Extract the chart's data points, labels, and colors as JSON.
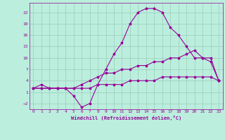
{
  "xlabel": "Windchill (Refroidissement éolien,°C)",
  "bg_color": "#bbeedd",
  "grid_color": "#99ccbb",
  "line_color": "#990099",
  "xlim": [
    -0.5,
    23.5
  ],
  "ylim": [
    -3.5,
    24.5
  ],
  "xticks": [
    0,
    1,
    2,
    3,
    4,
    5,
    6,
    7,
    8,
    9,
    10,
    11,
    12,
    13,
    14,
    15,
    16,
    17,
    18,
    19,
    20,
    21,
    22,
    23
  ],
  "yticks": [
    -2,
    1,
    4,
    7,
    10,
    13,
    16,
    19,
    22
  ],
  "curve1_x": [
    0,
    1,
    2,
    3,
    4,
    5,
    6,
    7,
    8,
    9,
    10,
    11,
    12,
    13,
    14,
    15,
    16,
    17,
    18,
    19,
    20,
    21,
    22,
    23
  ],
  "curve1_y": [
    2,
    3,
    2,
    2,
    2,
    0,
    -3,
    -2,
    3,
    7,
    11,
    14,
    19,
    22,
    23,
    23,
    22,
    18,
    16,
    13,
    10,
    10,
    9,
    4
  ],
  "curve2_x": [
    0,
    1,
    2,
    3,
    4,
    5,
    6,
    7,
    8,
    9,
    10,
    11,
    12,
    13,
    14,
    15,
    16,
    17,
    18,
    19,
    20,
    21,
    22,
    23
  ],
  "curve2_y": [
    2,
    2,
    2,
    2,
    2,
    2,
    3,
    4,
    5,
    6,
    6,
    7,
    7,
    8,
    8,
    9,
    9,
    10,
    10,
    11,
    12,
    10,
    10,
    4
  ],
  "curve3_x": [
    0,
    1,
    2,
    3,
    4,
    5,
    6,
    7,
    8,
    9,
    10,
    11,
    12,
    13,
    14,
    15,
    16,
    17,
    18,
    19,
    20,
    21,
    22,
    23
  ],
  "curve3_y": [
    2,
    2,
    2,
    2,
    2,
    2,
    2,
    2,
    3,
    3,
    3,
    3,
    4,
    4,
    4,
    4,
    5,
    5,
    5,
    5,
    5,
    5,
    5,
    4
  ]
}
